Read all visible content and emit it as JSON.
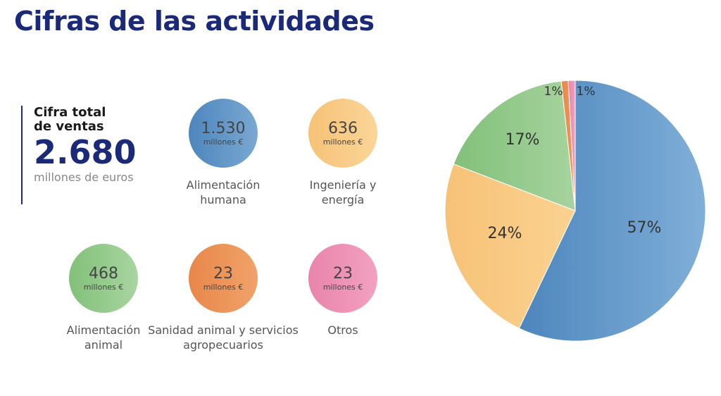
{
  "title": "Cifras de las actividades",
  "total": {
    "label": "Cifra total de ventas",
    "value": "2.680",
    "unit": "millones de euros"
  },
  "items": [
    {
      "value": "1.530",
      "unit": "millones €",
      "name": "Alimentación humana",
      "color": "#7aa8d2",
      "color2": "#4d86bd"
    },
    {
      "value": "636",
      "unit": "millones €",
      "name": "Ingeniería y energía",
      "color": "#fbd598",
      "color2": "#f6c277"
    },
    {
      "value": "468",
      "unit": "millones €",
      "name": "Alimentación animal",
      "color": "#a8d5a0",
      "color2": "#82c07a"
    },
    {
      "value": "23",
      "unit": "millones €",
      "name": "Sanidad animal y servicios agropecuarios",
      "color": "#f0a26a",
      "color2": "#e8874a"
    },
    {
      "value": "23",
      "unit": "millones €",
      "name": "Otros",
      "color": "#f3a1c0",
      "color2": "#e884ab"
    }
  ],
  "chart_data": {
    "type": "pie",
    "categories": [
      "Alimentación humana",
      "Ingeniería y energía",
      "Alimentación animal",
      "Sanidad animal y servicios agropecuarios",
      "Otros"
    ],
    "values": [
      1530,
      636,
      468,
      23,
      23
    ],
    "labels": [
      "57%",
      "24%",
      "17%",
      "1%",
      "1%"
    ],
    "colors": [
      "#80afd8",
      "#fbd291",
      "#a6d39e",
      "#ee9a5e",
      "#f0a0c0"
    ],
    "start": "top",
    "direction": "clockwise"
  }
}
